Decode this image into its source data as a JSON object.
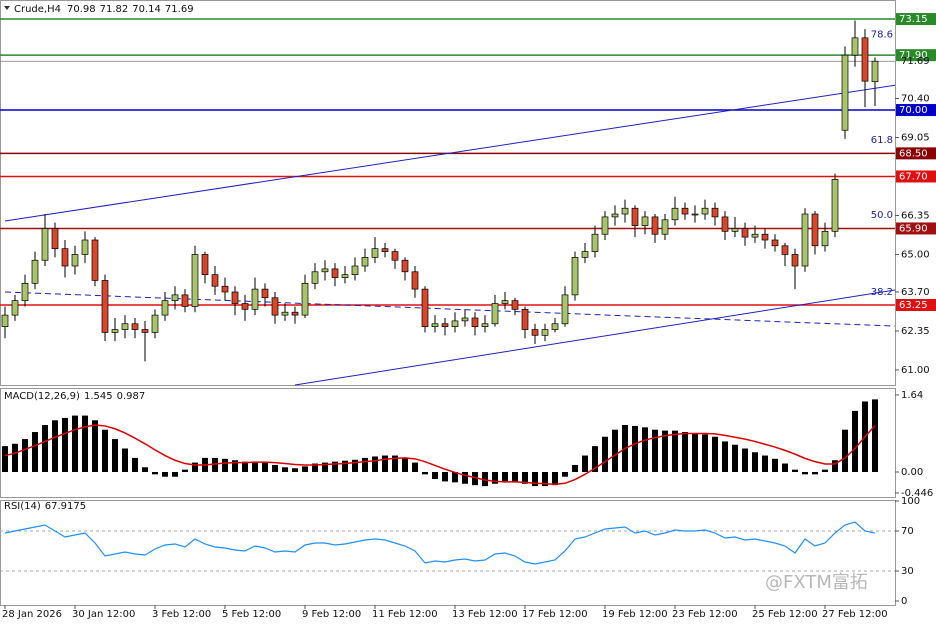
{
  "chart_data": {
    "type": "candlestick",
    "title": "Crude,H4",
    "categories": [
      "28 Jan 2026",
      null,
      null,
      null,
      null,
      null,
      null,
      "30 Jan 12:00",
      null,
      null,
      null,
      null,
      null,
      null,
      null,
      "3 Feb 12:00",
      null,
      null,
      null,
      null,
      null,
      null,
      "5 Feb 12:00",
      null,
      null,
      null,
      null,
      null,
      null,
      null,
      "9 Feb 12:00",
      null,
      null,
      null,
      null,
      null,
      null,
      "11 Feb 12:00",
      null,
      null,
      null,
      null,
      null,
      null,
      null,
      "13 Feb 12:00",
      null,
      null,
      null,
      null,
      null,
      null,
      "17 Feb 12:00",
      null,
      null,
      null,
      null,
      null,
      null,
      null,
      "19 Feb 12:00",
      null,
      null,
      null,
      null,
      null,
      null,
      "23 Feb 12:00",
      null,
      null,
      null,
      null,
      null,
      null,
      null,
      "25 Feb 12:00",
      null,
      null,
      null,
      null,
      null,
      null,
      "27 Feb 12:00",
      null,
      null,
      null,
      null,
      null
    ],
    "candles": [
      [
        62.5,
        63.2,
        62.1,
        62.9
      ],
      [
        62.9,
        63.6,
        62.7,
        63.4
      ],
      [
        63.4,
        64.3,
        63.2,
        64.0
      ],
      [
        64.0,
        65.1,
        63.8,
        64.8
      ],
      [
        64.8,
        66.4,
        64.6,
        65.9
      ],
      [
        65.9,
        66.1,
        64.9,
        65.2
      ],
      [
        65.2,
        65.5,
        64.2,
        64.6
      ],
      [
        64.6,
        65.3,
        64.3,
        65.0
      ],
      [
        65.0,
        65.8,
        64.7,
        65.5
      ],
      [
        65.5,
        65.6,
        63.9,
        64.1
      ],
      [
        64.1,
        64.3,
        62.0,
        62.3
      ],
      [
        62.3,
        62.8,
        62.0,
        62.4
      ],
      [
        62.4,
        62.9,
        62.1,
        62.6
      ],
      [
        62.6,
        62.8,
        62.1,
        62.4
      ],
      [
        62.4,
        62.7,
        61.3,
        62.3
      ],
      [
        62.3,
        63.1,
        62.1,
        62.9
      ],
      [
        62.9,
        63.7,
        62.7,
        63.4
      ],
      [
        63.4,
        63.9,
        63.1,
        63.6
      ],
      [
        63.6,
        63.8,
        63.0,
        63.2
      ],
      [
        63.2,
        65.3,
        63.0,
        65.0
      ],
      [
        65.0,
        65.1,
        64.0,
        64.3
      ],
      [
        64.3,
        64.6,
        63.6,
        63.9
      ],
      [
        63.9,
        64.2,
        63.4,
        63.7
      ],
      [
        63.7,
        63.9,
        62.9,
        63.3
      ],
      [
        63.3,
        63.6,
        62.7,
        63.1
      ],
      [
        63.1,
        64.2,
        62.9,
        63.8
      ],
      [
        63.8,
        64.0,
        63.2,
        63.5
      ],
      [
        63.5,
        63.7,
        62.6,
        62.9
      ],
      [
        62.9,
        63.3,
        62.7,
        63.0
      ],
      [
        63.0,
        63.2,
        62.6,
        62.9
      ],
      [
        62.9,
        64.3,
        62.8,
        64.0
      ],
      [
        64.0,
        64.7,
        63.8,
        64.4
      ],
      [
        64.4,
        64.8,
        64.1,
        64.5
      ],
      [
        64.5,
        64.7,
        63.9,
        64.2
      ],
      [
        64.2,
        64.6,
        64.0,
        64.3
      ],
      [
        64.3,
        64.9,
        64.1,
        64.6
      ],
      [
        64.6,
        65.2,
        64.4,
        64.9
      ],
      [
        64.9,
        65.6,
        64.7,
        65.2
      ],
      [
        65.2,
        65.4,
        64.9,
        65.1
      ],
      [
        65.1,
        65.2,
        64.5,
        64.8
      ],
      [
        64.8,
        64.9,
        64.1,
        64.4
      ],
      [
        64.4,
        64.6,
        63.5,
        63.8
      ],
      [
        63.8,
        63.9,
        62.3,
        62.5
      ],
      [
        62.5,
        62.9,
        62.3,
        62.6
      ],
      [
        62.6,
        62.8,
        62.2,
        62.5
      ],
      [
        62.5,
        63.0,
        62.3,
        62.7
      ],
      [
        62.7,
        63.1,
        62.5,
        62.8
      ],
      [
        62.8,
        63.0,
        62.2,
        62.5
      ],
      [
        62.5,
        62.9,
        62.3,
        62.6
      ],
      [
        62.6,
        63.6,
        62.5,
        63.3
      ],
      [
        63.3,
        63.7,
        63.1,
        63.4
      ],
      [
        63.4,
        63.5,
        62.9,
        63.1
      ],
      [
        63.1,
        63.2,
        62.1,
        62.4
      ],
      [
        62.4,
        62.6,
        61.9,
        62.2
      ],
      [
        62.2,
        62.6,
        62.0,
        62.4
      ],
      [
        62.4,
        62.8,
        62.3,
        62.6
      ],
      [
        62.6,
        63.9,
        62.5,
        63.6
      ],
      [
        63.6,
        65.1,
        63.4,
        64.9
      ],
      [
        64.9,
        65.4,
        64.7,
        65.1
      ],
      [
        65.1,
        66.0,
        64.9,
        65.7
      ],
      [
        65.7,
        66.5,
        65.5,
        66.3
      ],
      [
        66.3,
        66.7,
        66.0,
        66.4
      ],
      [
        66.4,
        66.9,
        66.1,
        66.6
      ],
      [
        66.6,
        66.7,
        65.6,
        66.0
      ],
      [
        66.0,
        66.5,
        65.7,
        66.3
      ],
      [
        66.3,
        66.4,
        65.4,
        65.7
      ],
      [
        65.7,
        66.4,
        65.5,
        66.2
      ],
      [
        66.2,
        67.0,
        66.0,
        66.6
      ],
      [
        66.6,
        66.8,
        66.2,
        66.4
      ],
      [
        66.4,
        66.7,
        66.1,
        66.4
      ],
      [
        66.4,
        66.9,
        66.2,
        66.6
      ],
      [
        66.6,
        66.8,
        66.0,
        66.3
      ],
      [
        66.3,
        66.5,
        65.5,
        65.8
      ],
      [
        65.8,
        66.3,
        65.6,
        65.9
      ],
      [
        65.9,
        66.1,
        65.3,
        65.6
      ],
      [
        65.6,
        66.0,
        65.4,
        65.7
      ],
      [
        65.7,
        65.9,
        65.2,
        65.5
      ],
      [
        65.5,
        65.7,
        65.1,
        65.3
      ],
      [
        65.3,
        65.4,
        64.6,
        65.0
      ],
      [
        65.0,
        65.2,
        63.8,
        64.6
      ],
      [
        64.6,
        66.6,
        64.4,
        66.4
      ],
      [
        66.4,
        66.5,
        65.0,
        65.3
      ],
      [
        65.3,
        66.1,
        65.1,
        65.8
      ],
      [
        65.8,
        67.8,
        65.6,
        67.6
      ],
      [
        69.3,
        72.2,
        69.0,
        71.9
      ],
      [
        71.9,
        73.1,
        71.5,
        72.5
      ],
      [
        72.5,
        72.8,
        70.1,
        71.0
      ],
      [
        70.98,
        71.82,
        70.14,
        71.69
      ]
    ],
    "up_color": "#a8c46a",
    "down_color": "#d8472b",
    "ylim": [
      60.48,
      73.81
    ],
    "yticks": [
      {
        "value": 70.4,
        "label": "70.40"
      },
      {
        "value": 69.05,
        "label": "69.05"
      },
      {
        "value": 66.35,
        "label": "66.35"
      },
      {
        "value": 65,
        "label": "65.00"
      },
      {
        "value": 63.7,
        "label": "63.70"
      },
      {
        "value": 62.35,
        "label": "62.35"
      },
      {
        "value": 61,
        "label": "61.00"
      }
    ],
    "levels": [
      {
        "value": 73.15,
        "label": "73.15",
        "color": "#2a8a2a"
      },
      {
        "value": 71.9,
        "label": "71.90",
        "color": "#2a8a2a"
      },
      {
        "value": 70,
        "label": "70.00",
        "color": "#0000c8"
      },
      {
        "value": 68.5,
        "label": "68.50",
        "color": "#8b0000"
      },
      {
        "value": 67.7,
        "label": "67.70",
        "color": "#e01010"
      },
      {
        "value": 65.9,
        "label": "65.90",
        "color": "#a01010"
      },
      {
        "value": 63.25,
        "label": "63.25",
        "color": "#e01010"
      }
    ],
    "fib_labels": [
      {
        "label": "78.6",
        "price": 72.4
      },
      {
        "label": "61.8",
        "price": 68.75
      },
      {
        "label": "50.0",
        "price": 66.15
      },
      {
        "label": "38.2",
        "price": 63.5
      }
    ],
    "trendlines": [
      {
        "start_index": 0,
        "end_index": 89,
        "start": 66.16,
        "end": 70.86,
        "style": "solid",
        "color": "#2020c0"
      },
      {
        "start_index": 29,
        "end_index": 89,
        "start": 60.48,
        "end": 63.77,
        "style": "solid",
        "color": "#2020c0"
      },
      {
        "start_index": 0,
        "end_index": 89,
        "start": 63.7,
        "end": 62.52,
        "style": "dashed",
        "color": "#2020c0"
      }
    ],
    "macd": {
      "title": "MACD(12,26,9)",
      "hist_color": "#000000",
      "signal_color": "#e00000",
      "ylim": [
        -0.532,
        1.787
      ],
      "yticks": [
        1.64,
        {
          "value": 0,
          "label": "0.00"
        },
        -0.446
      ],
      "hist": [
        0.55,
        0.6,
        0.7,
        0.85,
        1.0,
        1.1,
        1.15,
        1.2,
        1.2,
        1.1,
        0.9,
        0.7,
        0.5,
        0.3,
        0.1,
        -0.05,
        -0.1,
        -0.1,
        0.05,
        0.2,
        0.3,
        0.3,
        0.28,
        0.25,
        0.22,
        0.22,
        0.2,
        0.15,
        0.1,
        0.08,
        0.12,
        0.18,
        0.2,
        0.22,
        0.24,
        0.26,
        0.3,
        0.33,
        0.35,
        0.35,
        0.3,
        0.2,
        -0.05,
        -0.15,
        -0.2,
        -0.22,
        -0.25,
        -0.28,
        -0.3,
        -0.25,
        -0.2,
        -0.2,
        -0.25,
        -0.3,
        -0.3,
        -0.28,
        -0.1,
        0.15,
        0.35,
        0.55,
        0.75,
        0.9,
        1.0,
        0.98,
        0.95,
        0.9,
        0.88,
        0.88,
        0.85,
        0.82,
        0.8,
        0.75,
        0.65,
        0.58,
        0.5,
        0.42,
        0.35,
        0.28,
        0.18,
        0.05,
        -0.05,
        -0.05,
        0.05,
        0.25,
        0.9,
        1.3,
        1.5,
        1.545
      ],
      "signal": [
        0.35,
        0.4,
        0.48,
        0.56,
        0.65,
        0.74,
        0.82,
        0.9,
        0.96,
        1.0,
        0.98,
        0.92,
        0.83,
        0.72,
        0.6,
        0.47,
        0.35,
        0.25,
        0.18,
        0.15,
        0.15,
        0.17,
        0.19,
        0.2,
        0.2,
        0.21,
        0.21,
        0.2,
        0.18,
        0.16,
        0.15,
        0.15,
        0.16,
        0.17,
        0.18,
        0.2,
        0.22,
        0.24,
        0.27,
        0.29,
        0.3,
        0.28,
        0.22,
        0.14,
        0.06,
        -0.01,
        -0.07,
        -0.12,
        -0.17,
        -0.2,
        -0.21,
        -0.21,
        -0.22,
        -0.24,
        -0.25,
        -0.26,
        -0.24,
        -0.16,
        -0.05,
        0.08,
        0.22,
        0.36,
        0.5,
        0.6,
        0.68,
        0.73,
        0.77,
        0.8,
        0.82,
        0.82,
        0.82,
        0.81,
        0.78,
        0.74,
        0.7,
        0.65,
        0.59,
        0.53,
        0.46,
        0.38,
        0.29,
        0.22,
        0.17,
        0.17,
        0.3,
        0.5,
        0.75,
        0.987
      ]
    },
    "rsi": {
      "title": "RSI(14)",
      "color": "#1e90ff",
      "ylim": [
        -4,
        101
      ],
      "yticks": [
        100,
        70,
        30,
        0
      ],
      "levels": [
        70,
        30
      ],
      "values": [
        68,
        70,
        72,
        74,
        76,
        70,
        64,
        66,
        68,
        58,
        45,
        47,
        49,
        47,
        46,
        52,
        56,
        57,
        54,
        62,
        57,
        54,
        53,
        51,
        50,
        55,
        53,
        49,
        50,
        49,
        56,
        58,
        58,
        56,
        57,
        59,
        61,
        62,
        61,
        58,
        55,
        50,
        38,
        40,
        39,
        41,
        42,
        40,
        41,
        47,
        48,
        45,
        39,
        37,
        39,
        41,
        50,
        62,
        64,
        68,
        72,
        73,
        74,
        68,
        70,
        66,
        68,
        71,
        70,
        70,
        71,
        68,
        63,
        64,
        61,
        62,
        60,
        58,
        55,
        48,
        62,
        55,
        58,
        68,
        76,
        79,
        70,
        67.9175
      ]
    },
    "watermark": "@FXTM富拓"
  }
}
